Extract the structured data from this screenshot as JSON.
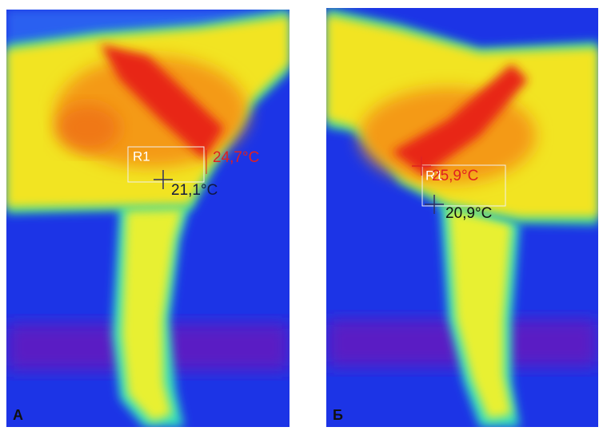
{
  "panels": [
    {
      "label": "А",
      "roi": "R1",
      "max_temp": "24,7°C",
      "min_temp": "21,1°C"
    },
    {
      "label": "Б",
      "roi": "R1",
      "max_temp": "25,9°C",
      "min_temp": "20,9°C"
    }
  ]
}
